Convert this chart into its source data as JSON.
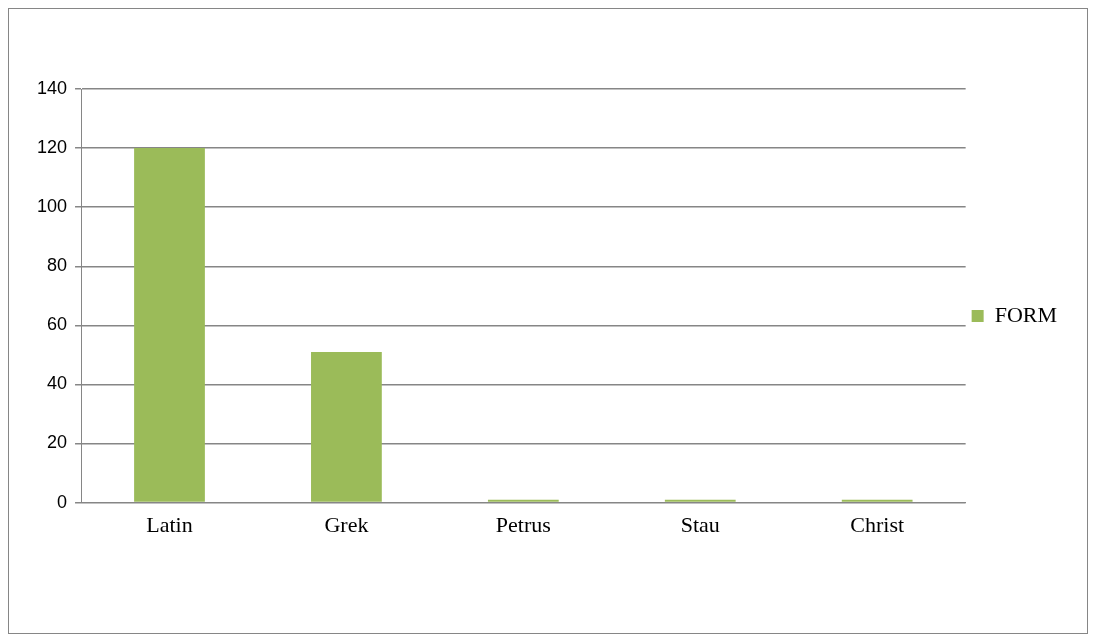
{
  "chart_data": {
    "type": "bar",
    "categories": [
      "Latin",
      "Grek",
      "Petrus",
      "Stau",
      "Christ"
    ],
    "series": [
      {
        "name": "FORM",
        "color": "#9bbb59",
        "values": [
          120,
          51,
          1,
          1,
          1
        ]
      }
    ],
    "ylim": [
      0,
      140
    ],
    "yticks": [
      0,
      20,
      40,
      60,
      80,
      100,
      120,
      140
    ],
    "grid": "y",
    "legend": "right"
  }
}
